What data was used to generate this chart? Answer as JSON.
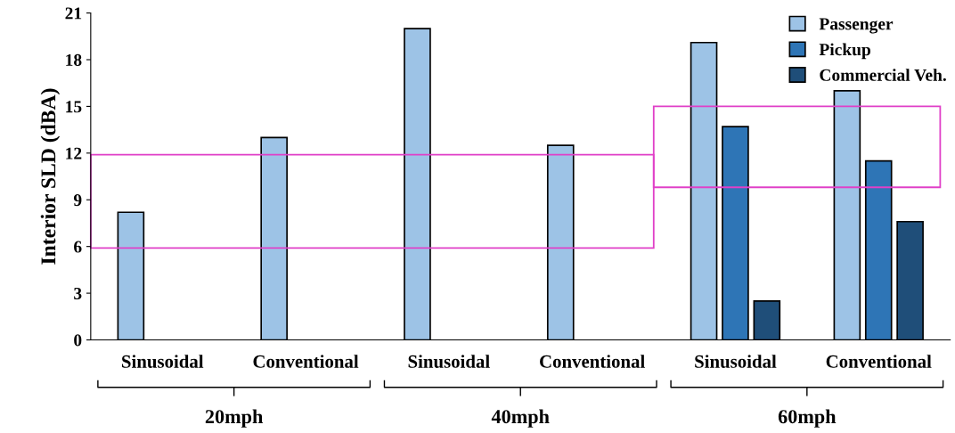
{
  "chart_data": {
    "type": "bar",
    "ylabel": "Interior SLD (dBA)",
    "categories": [
      "Sinusoidal",
      "Conventional",
      "Sinusoidal",
      "Conventional",
      "Sinusoidal",
      "Conventional"
    ],
    "series": [
      {
        "name": "Passenger",
        "color": "#9dc3e6",
        "values": [
          8.2,
          13.0,
          20.0,
          12.5,
          19.1,
          16.0
        ]
      },
      {
        "name": "Pickup",
        "color": "#2e75b6",
        "values": [
          null,
          null,
          null,
          null,
          13.7,
          11.5
        ]
      },
      {
        "name": "Commercial Veh.",
        "color": "#1f4e79",
        "values": [
          null,
          null,
          null,
          null,
          2.5,
          7.6
        ]
      }
    ],
    "annotations": [
      "20mph",
      "40mph",
      "60mph"
    ],
    "ylim": [
      0,
      21
    ],
    "yticks": [
      0,
      3,
      6,
      9,
      12,
      15,
      18,
      21
    ],
    "legend": "top right"
  }
}
